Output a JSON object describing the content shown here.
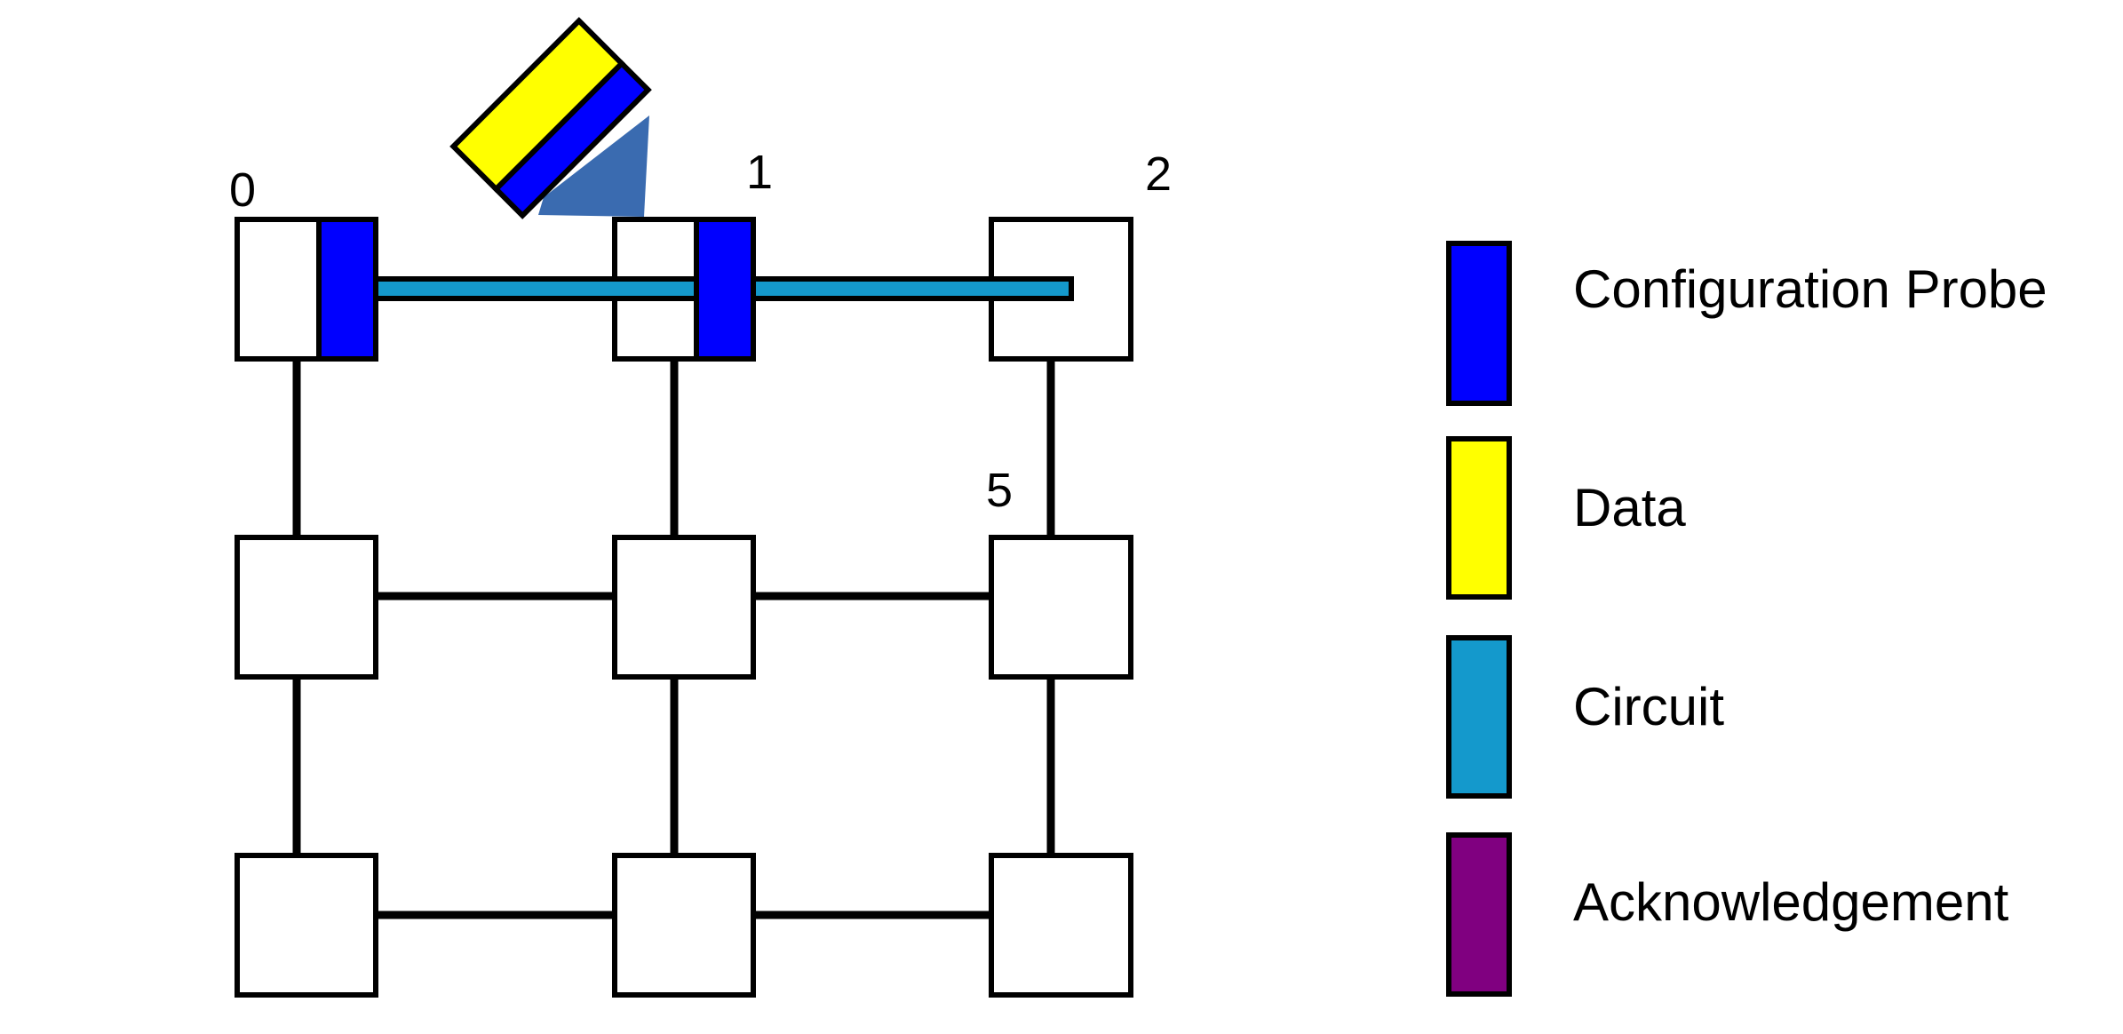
{
  "colors": {
    "configuration_probe": "#0000FF",
    "data": "#FFFF00",
    "circuit": "#1499CC",
    "acknowledgement": "#800080",
    "beam": "#2F63AC"
  },
  "nodes": {
    "node_0_label": "0",
    "node_1_label": "1",
    "node_2_label": "2",
    "node_5_label": "5"
  },
  "legend": [
    {
      "key": "configuration_probe",
      "label": "Configuration Probe"
    },
    {
      "key": "data",
      "label": "Data"
    },
    {
      "key": "circuit",
      "label": "Circuit"
    },
    {
      "key": "acknowledgement",
      "label": "Acknowledgement"
    }
  ]
}
